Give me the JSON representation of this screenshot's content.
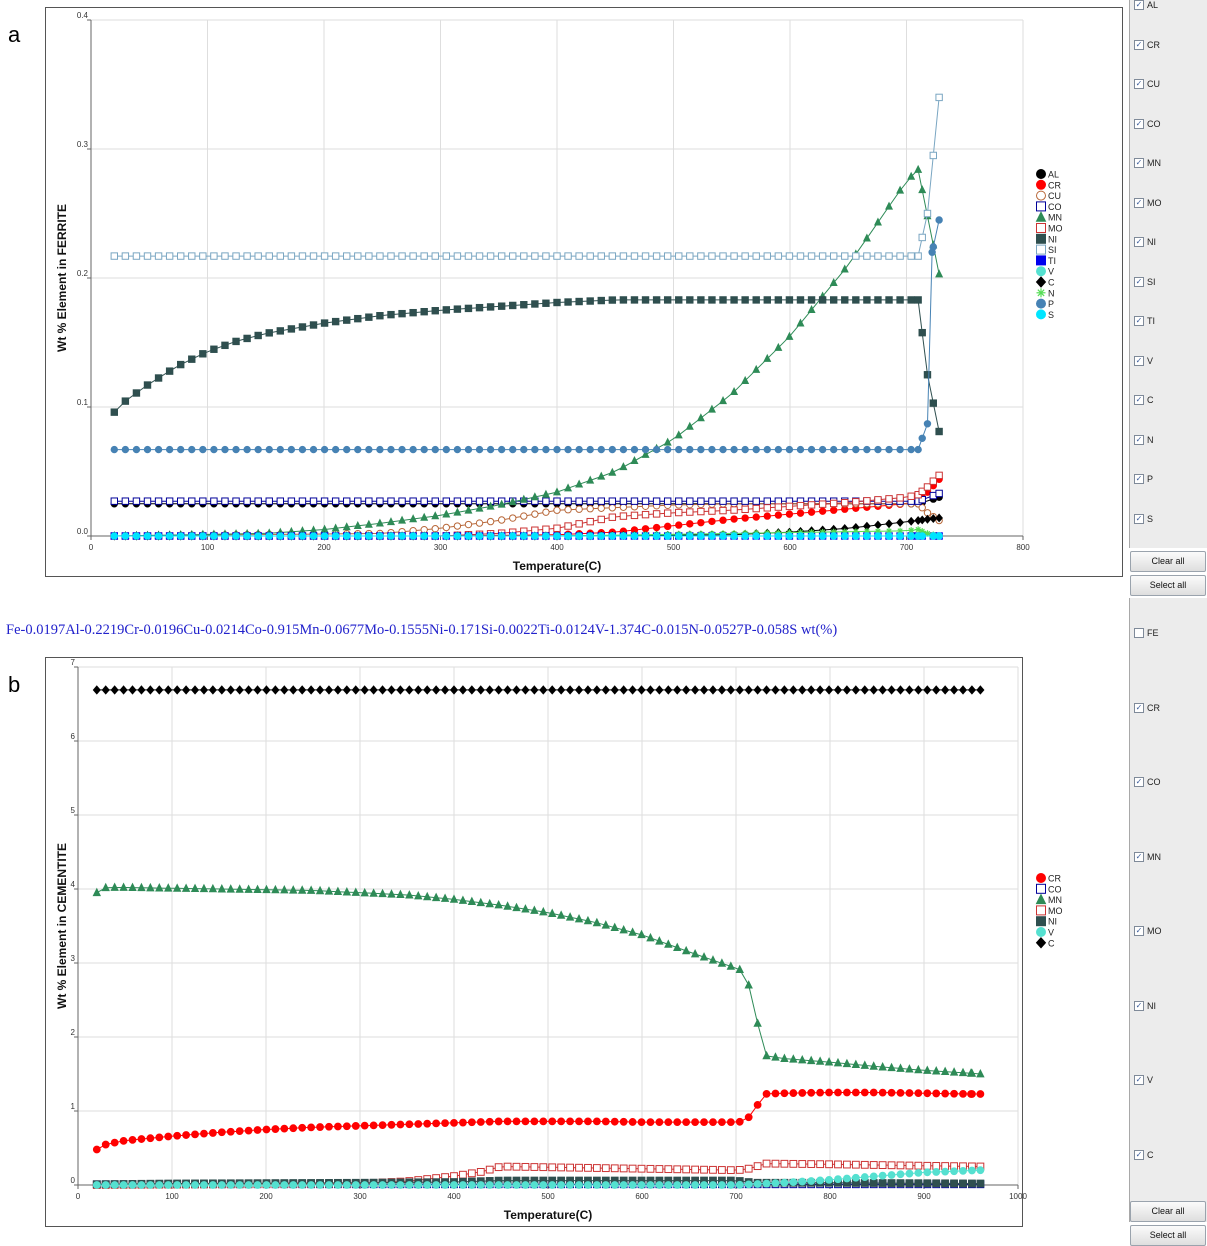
{
  "panel_labels": [
    "a",
    "b"
  ],
  "composition": "Fe-0.0197Al-0.2219Cr-0.0196Cu-0.0214Co-0.915Mn-0.0677Mo-0.1555Ni-0.171Si-0.0022Ti-0.0124V-1.374C-0.015N-0.0527P-0.058S wt(%)",
  "sidebar_top": {
    "items": [
      {
        "label": "AL",
        "checked": true
      },
      {
        "label": "CR",
        "checked": true
      },
      {
        "label": "CU",
        "checked": true
      },
      {
        "label": "CO",
        "checked": true
      },
      {
        "label": "MN",
        "checked": true
      },
      {
        "label": "MO",
        "checked": true
      },
      {
        "label": "NI",
        "checked": true
      },
      {
        "label": "SI",
        "checked": true
      },
      {
        "label": "TI",
        "checked": true
      },
      {
        "label": "V",
        "checked": true
      },
      {
        "label": "C",
        "checked": true
      },
      {
        "label": "N",
        "checked": true
      },
      {
        "label": "P",
        "checked": true
      },
      {
        "label": "S",
        "checked": true
      }
    ],
    "clear_label": "Clear all",
    "select_label": "Select all"
  },
  "sidebar_bottom": {
    "items": [
      {
        "label": "FE",
        "checked": false
      },
      {
        "label": "CR",
        "checked": true
      },
      {
        "label": "CO",
        "checked": true
      },
      {
        "label": "MN",
        "checked": true
      },
      {
        "label": "MO",
        "checked": true
      },
      {
        "label": "NI",
        "checked": true
      },
      {
        "label": "V",
        "checked": true
      },
      {
        "label": "C",
        "checked": true
      }
    ],
    "clear_label": "Clear all",
    "select_label": "Select all"
  },
  "chart_data": [
    {
      "type": "line",
      "panel": "a",
      "xlabel": "Temperature(C)",
      "ylabel": "Wt %  Element in FERRITE",
      "xlim": [
        0,
        800
      ],
      "ylim": [
        0,
        0.4
      ],
      "xticks": [
        0,
        100,
        200,
        300,
        400,
        500,
        600,
        700,
        800
      ],
      "yticks": [
        0.0,
        0.1,
        0.2,
        0.3,
        0.4
      ],
      "ytick_labels": [
        "0.0",
        "0.1",
        "0.2",
        "0.3",
        "0.4"
      ],
      "grid": true,
      "legend": "right",
      "series": [
        {
          "name": "AL",
          "color": "#000000",
          "marker": "circle",
          "filled": true,
          "x": [
            20,
            400,
            710,
            728
          ],
          "y": [
            0.025,
            0.025,
            0.025,
            0.03
          ]
        },
        {
          "name": "CR",
          "color": "#ff0000",
          "marker": "circle",
          "filled": true,
          "x": [
            20,
            300,
            400,
            450,
            500,
            550,
            600,
            650,
            700,
            710,
            718,
            728
          ],
          "y": [
            0.0,
            0.0,
            0.001,
            0.003,
            0.008,
            0.013,
            0.017,
            0.021,
            0.025,
            0.027,
            0.034,
            0.044
          ]
        },
        {
          "name": "CU",
          "color": "#b8683a",
          "marker": "circle",
          "filled": false,
          "x": [
            20,
            250,
            300,
            350,
            400,
            450,
            500,
            550,
            600,
            650,
            700,
            710,
            718,
            728
          ],
          "y": [
            0.0,
            0.002,
            0.006,
            0.012,
            0.02,
            0.022,
            0.024,
            0.025,
            0.025,
            0.025,
            0.025,
            0.025,
            0.018,
            0.012
          ]
        },
        {
          "name": "CO",
          "color": "#000099",
          "marker": "square",
          "filled": false,
          "x": [
            20,
            400,
            710,
            728
          ],
          "y": [
            0.027,
            0.027,
            0.027,
            0.033
          ]
        },
        {
          "name": "MN",
          "color": "#2e8b57",
          "marker": "triangle",
          "filled": true,
          "x": [
            20,
            150,
            200,
            250,
            300,
            350,
            400,
            450,
            500,
            550,
            600,
            650,
            700,
            710,
            718,
            728
          ],
          "y": [
            0.0,
            0.002,
            0.005,
            0.01,
            0.016,
            0.024,
            0.034,
            0.05,
            0.075,
            0.11,
            0.155,
            0.21,
            0.275,
            0.284,
            0.248,
            0.203
          ]
        },
        {
          "name": "MO",
          "color": "#cc3333",
          "marker": "square",
          "filled": false,
          "x": [
            20,
            300,
            350,
            400,
            450,
            500,
            550,
            600,
            650,
            700,
            710,
            718,
            728
          ],
          "y": [
            0.0,
            0.0,
            0.002,
            0.006,
            0.015,
            0.018,
            0.02,
            0.023,
            0.026,
            0.03,
            0.032,
            0.038,
            0.047
          ]
        },
        {
          "name": "NI",
          "color": "#2f4f4f",
          "marker": "square",
          "filled": true,
          "x": [
            20,
            30,
            50,
            75,
            100,
            125,
            150,
            175,
            200,
            250,
            300,
            350,
            400,
            450,
            500,
            550,
            600,
            650,
            700,
            710,
            718,
            728
          ],
          "y": [
            0.096,
            0.105,
            0.118,
            0.132,
            0.143,
            0.151,
            0.157,
            0.161,
            0.165,
            0.171,
            0.175,
            0.178,
            0.181,
            0.183,
            0.183,
            0.183,
            0.183,
            0.183,
            0.183,
            0.183,
            0.125,
            0.081
          ]
        },
        {
          "name": "SI",
          "color": "#7aa6c2",
          "marker": "square",
          "filled": false,
          "x": [
            20,
            200,
            400,
            600,
            700,
            710,
            718,
            728
          ],
          "y": [
            0.217,
            0.217,
            0.217,
            0.217,
            0.217,
            0.217,
            0.25,
            0.34
          ]
        },
        {
          "name": "TI",
          "color": "#0000ee",
          "marker": "square",
          "filled": true,
          "x": [
            20,
            400,
            710,
            728
          ],
          "y": [
            0.0,
            0.0,
            0.0,
            0.0
          ]
        },
        {
          "name": "V",
          "color": "#55e0d0",
          "marker": "circle",
          "filled": true,
          "x": [
            20,
            400,
            710,
            728
          ],
          "y": [
            0.0,
            0.0,
            0.0,
            0.0
          ]
        },
        {
          "name": "C",
          "color": "#000000",
          "marker": "diamond",
          "filled": true,
          "x": [
            20,
            400,
            550,
            600,
            650,
            700,
            710,
            718,
            728
          ],
          "y": [
            0.0,
            0.0,
            0.001,
            0.003,
            0.006,
            0.011,
            0.012,
            0.013,
            0.014
          ]
        },
        {
          "name": "N",
          "color": "#55dd55",
          "marker": "star",
          "filled": false,
          "x": [
            20,
            400,
            700,
            710,
            718,
            728
          ],
          "y": [
            0.0,
            0.0,
            0.004,
            0.005,
            0.002,
            0.0
          ]
        },
        {
          "name": "P",
          "color": "#4682b4",
          "marker": "circle",
          "filled": true,
          "x": [
            20,
            200,
            400,
            600,
            700,
            710,
            718,
            722,
            728
          ],
          "y": [
            0.067,
            0.067,
            0.067,
            0.067,
            0.067,
            0.067,
            0.087,
            0.22,
            0.245
          ]
        },
        {
          "name": "S",
          "color": "#00e5ff",
          "marker": "circle",
          "filled": true,
          "x": [
            20,
            400,
            710,
            728
          ],
          "y": [
            0.0,
            0.0,
            0.0,
            0.0
          ]
        }
      ]
    },
    {
      "type": "line",
      "panel": "b",
      "xlabel": "Temperature(C)",
      "ylabel": "Wt %  Element in CEMENTITE",
      "xlim": [
        0,
        1000
      ],
      "ylim": [
        0,
        7
      ],
      "xticks": [
        0,
        100,
        200,
        300,
        400,
        500,
        600,
        700,
        800,
        900,
        1000
      ],
      "yticks": [
        0,
        1,
        2,
        3,
        4,
        5,
        6,
        7
      ],
      "ytick_labels": [
        "0",
        "1",
        "2",
        "3",
        "4",
        "5",
        "6",
        "7"
      ],
      "grid": true,
      "legend": "right",
      "series": [
        {
          "name": "CR",
          "color": "#ff0000",
          "marker": "circle",
          "filled": true,
          "x": [
            20,
            30,
            50,
            100,
            150,
            200,
            250,
            300,
            350,
            400,
            450,
            500,
            550,
            600,
            650,
            700,
            710,
            720,
            730,
            750,
            800,
            850,
            900,
            950,
            960
          ],
          "y": [
            0.48,
            0.55,
            0.6,
            0.66,
            0.71,
            0.75,
            0.78,
            0.8,
            0.82,
            0.84,
            0.86,
            0.86,
            0.86,
            0.85,
            0.85,
            0.85,
            0.86,
            1.02,
            1.23,
            1.24,
            1.25,
            1.25,
            1.24,
            1.23,
            1.23
          ]
        },
        {
          "name": "CO",
          "color": "#000099",
          "marker": "square",
          "filled": false,
          "x": [
            20,
            500,
            960
          ],
          "y": [
            0.01,
            0.01,
            0.01
          ]
        },
        {
          "name": "MN",
          "color": "#2e8b57",
          "marker": "triangle",
          "filled": true,
          "x": [
            20,
            30,
            50,
            100,
            150,
            200,
            250,
            300,
            350,
            400,
            450,
            500,
            550,
            600,
            650,
            700,
            710,
            720,
            730,
            750,
            800,
            850,
            900,
            950,
            960
          ],
          "y": [
            3.95,
            4.02,
            4.02,
            4.01,
            4.0,
            3.99,
            3.98,
            3.95,
            3.92,
            3.86,
            3.78,
            3.68,
            3.55,
            3.38,
            3.15,
            2.93,
            2.88,
            2.37,
            1.75,
            1.71,
            1.66,
            1.6,
            1.55,
            1.51,
            1.5
          ]
        },
        {
          "name": "MO",
          "color": "#cc3333",
          "marker": "square",
          "filled": false,
          "x": [
            20,
            300,
            350,
            400,
            430,
            450,
            500,
            600,
            700,
            710,
            720,
            730,
            800,
            900,
            960
          ],
          "y": [
            0.0,
            0.02,
            0.05,
            0.12,
            0.18,
            0.25,
            0.24,
            0.22,
            0.2,
            0.21,
            0.24,
            0.29,
            0.28,
            0.26,
            0.25
          ]
        },
        {
          "name": "NI",
          "color": "#2f4f4f",
          "marker": "square",
          "filled": true,
          "x": [
            20,
            100,
            300,
            400,
            450,
            500,
            700,
            720,
            800,
            960
          ],
          "y": [
            0.01,
            0.02,
            0.03,
            0.04,
            0.06,
            0.06,
            0.06,
            0.03,
            0.03,
            0.02
          ]
        },
        {
          "name": "V",
          "color": "#55e0d0",
          "marker": "circle",
          "filled": true,
          "x": [
            20,
            400,
            700,
            750,
            800,
            850,
            900,
            960
          ],
          "y": [
            0.0,
            0.0,
            0.0,
            0.03,
            0.07,
            0.12,
            0.17,
            0.2
          ]
        },
        {
          "name": "C",
          "color": "#000000",
          "marker": "diamond",
          "filled": true,
          "x": [
            20,
            500,
            960
          ],
          "y": [
            6.69,
            6.69,
            6.69
          ]
        }
      ]
    }
  ]
}
